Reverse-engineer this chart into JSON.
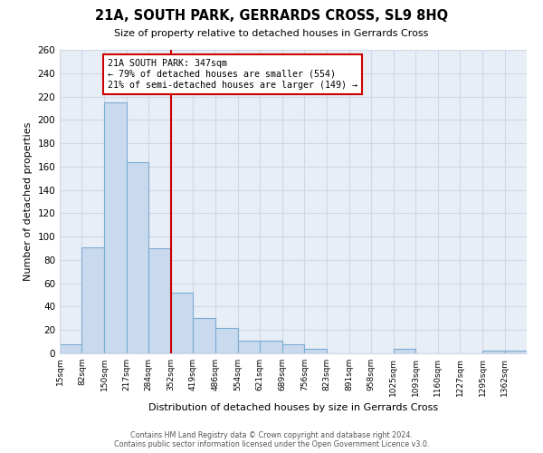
{
  "title": "21A, SOUTH PARK, GERRARDS CROSS, SL9 8HQ",
  "subtitle": "Size of property relative to detached houses in Gerrards Cross",
  "xlabel": "Distribution of detached houses by size in Gerrards Cross",
  "ylabel": "Number of detached properties",
  "bin_labels": [
    "15sqm",
    "82sqm",
    "150sqm",
    "217sqm",
    "284sqm",
    "352sqm",
    "419sqm",
    "486sqm",
    "554sqm",
    "621sqm",
    "689sqm",
    "756sqm",
    "823sqm",
    "891sqm",
    "958sqm",
    "1025sqm",
    "1093sqm",
    "1160sqm",
    "1227sqm",
    "1295sqm",
    "1362sqm"
  ],
  "bin_edges": [
    15,
    82,
    150,
    217,
    284,
    352,
    419,
    486,
    554,
    621,
    689,
    756,
    823,
    891,
    958,
    1025,
    1093,
    1160,
    1227,
    1295,
    1362
  ],
  "bar_heights": [
    8,
    91,
    215,
    164,
    90,
    52,
    30,
    22,
    11,
    11,
    8,
    4,
    0,
    0,
    0,
    4,
    0,
    0,
    0,
    2,
    2
  ],
  "bar_color": "#c9d9ee",
  "bar_edge_color": "#7aadd4",
  "marker_value": 352,
  "marker_color": "#cc0000",
  "annotation_title": "21A SOUTH PARK: 347sqm",
  "annotation_line1": "← 79% of detached houses are smaller (554)",
  "annotation_line2": "21% of semi-detached houses are larger (149) →",
  "annotation_box_color": "#ffffff",
  "annotation_box_edge": "#cc0000",
  "ylim": [
    0,
    260
  ],
  "yticks": [
    0,
    20,
    40,
    60,
    80,
    100,
    120,
    140,
    160,
    180,
    200,
    220,
    240,
    260
  ],
  "footer_line1": "Contains HM Land Registry data © Crown copyright and database right 2024.",
  "footer_line2": "Contains public sector information licensed under the Open Government Licence v3.0.",
  "bg_color": "#ffffff",
  "grid_color": "#d0d8e8"
}
